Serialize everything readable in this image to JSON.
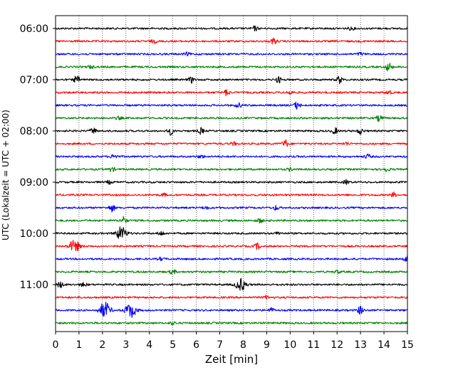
{
  "chart_data": {
    "type": "line",
    "xlabel": "Zeit  [min]",
    "ylabel": "UTC (Lokalzeit = UTC + 02:00)",
    "xlim": [
      0,
      15
    ],
    "x_ticks": [
      "0",
      "1",
      "2",
      "3",
      "4",
      "5",
      "6",
      "7",
      "8",
      "9",
      "10",
      "11",
      "12",
      "13",
      "14",
      "15"
    ],
    "y_tick_labels": [
      "06:00",
      "07:00",
      "08:00",
      "09:00",
      "10:00",
      "11:00"
    ],
    "grid": "vertical-dotted",
    "series_colors": [
      "#000000",
      "#ff0000",
      "#0000ff",
      "#008000"
    ],
    "traces": [
      {
        "start": "06:00",
        "color": "#000000",
        "events": [
          {
            "t": 8.5,
            "a": 3
          },
          {
            "t": 12.6,
            "a": 2
          }
        ]
      },
      {
        "start": "06:15",
        "color": "#ff0000",
        "events": [
          {
            "t": 9.3,
            "a": 4
          },
          {
            "t": 4.2,
            "a": 2
          }
        ]
      },
      {
        "start": "06:30",
        "color": "#0000ff",
        "events": [
          {
            "t": 5.6,
            "a": 2
          },
          {
            "t": 13.0,
            "a": 2
          }
        ]
      },
      {
        "start": "06:45",
        "color": "#008000",
        "events": [
          {
            "t": 14.2,
            "a": 6
          },
          {
            "t": 1.5,
            "a": 2
          }
        ]
      },
      {
        "start": "07:00",
        "color": "#000000",
        "events": [
          {
            "t": 0.9,
            "a": 5
          },
          {
            "t": 5.8,
            "a": 4
          },
          {
            "t": 9.5,
            "a": 4
          },
          {
            "t": 12.1,
            "a": 5
          }
        ]
      },
      {
        "start": "07:15",
        "color": "#ff0000",
        "events": [
          {
            "t": 7.3,
            "a": 4
          },
          {
            "t": 10.0,
            "a": 3
          },
          {
            "t": 14.2,
            "a": 3
          }
        ]
      },
      {
        "start": "07:30",
        "color": "#0000ff",
        "events": [
          {
            "t": 10.3,
            "a": 5
          },
          {
            "t": 7.8,
            "a": 3
          }
        ]
      },
      {
        "start": "07:45",
        "color": "#008000",
        "events": [
          {
            "t": 13.8,
            "a": 4
          },
          {
            "t": 2.7,
            "a": 2
          }
        ]
      },
      {
        "start": "08:00",
        "color": "#000000",
        "events": [
          {
            "t": 1.6,
            "a": 4
          },
          {
            "t": 4.9,
            "a": 5
          },
          {
            "t": 6.2,
            "a": 4
          },
          {
            "t": 11.9,
            "a": 4
          },
          {
            "t": 13.0,
            "a": 4
          }
        ]
      },
      {
        "start": "08:15",
        "color": "#ff0000",
        "events": [
          {
            "t": 9.8,
            "a": 5
          },
          {
            "t": 7.6,
            "a": 2
          },
          {
            "t": 12.4,
            "a": 2
          }
        ]
      },
      {
        "start": "08:30",
        "color": "#0000ff",
        "events": [
          {
            "t": 2.5,
            "a": 4
          },
          {
            "t": 13.3,
            "a": 3
          },
          {
            "t": 6.2,
            "a": 2
          }
        ]
      },
      {
        "start": "08:45",
        "color": "#008000",
        "events": [
          {
            "t": 2.4,
            "a": 3
          },
          {
            "t": 14.1,
            "a": 3
          },
          {
            "t": 10.0,
            "a": 2
          }
        ]
      },
      {
        "start": "09:00",
        "color": "#000000",
        "events": [
          {
            "t": 12.4,
            "a": 3
          },
          {
            "t": 2.3,
            "a": 2
          }
        ]
      },
      {
        "start": "09:15",
        "color": "#ff0000",
        "events": [
          {
            "t": 14.4,
            "a": 3
          },
          {
            "t": 4.6,
            "a": 2
          }
        ]
      },
      {
        "start": "09:30",
        "color": "#0000ff",
        "events": [
          {
            "t": 2.4,
            "a": 5
          },
          {
            "t": 9.4,
            "a": 3
          },
          {
            "t": 6.4,
            "a": 2
          }
        ]
      },
      {
        "start": "09:45",
        "color": "#008000",
        "events": [
          {
            "t": 2.9,
            "a": 5
          },
          {
            "t": 8.7,
            "a": 3
          }
        ]
      },
      {
        "start": "10:00",
        "color": "#000000",
        "events": [
          {
            "t": 2.8,
            "a": 9
          },
          {
            "t": 4.5,
            "a": 3
          },
          {
            "t": 9.5,
            "a": 2
          }
        ]
      },
      {
        "start": "10:15",
        "color": "#ff0000",
        "events": [
          {
            "t": 0.8,
            "a": 8
          },
          {
            "t": 8.6,
            "a": 4
          }
        ]
      },
      {
        "start": "10:30",
        "color": "#0000ff",
        "events": [
          {
            "t": 15.0,
            "a": 5
          },
          {
            "t": 4.5,
            "a": 2
          }
        ]
      },
      {
        "start": "10:45",
        "color": "#008000",
        "events": [
          {
            "t": 5.0,
            "a": 3
          },
          {
            "t": 12.0,
            "a": 2
          }
        ]
      },
      {
        "start": "11:00",
        "color": "#000000",
        "events": [
          {
            "t": 7.9,
            "a": 8
          },
          {
            "t": 0.2,
            "a": 4
          },
          {
            "t": 1.2,
            "a": 3
          }
        ]
      },
      {
        "start": "11:15",
        "color": "#ff0000",
        "events": [
          {
            "t": 9.0,
            "a": 2
          }
        ]
      },
      {
        "start": "11:30",
        "color": "#0000ff",
        "events": [
          {
            "t": 2.1,
            "a": 11
          },
          {
            "t": 3.2,
            "a": 10
          },
          {
            "t": 13.0,
            "a": 6
          },
          {
            "t": 9.2,
            "a": 3
          }
        ]
      },
      {
        "start": "11:45",
        "color": "#008000",
        "events": [
          {
            "t": 5.0,
            "a": 2
          }
        ]
      }
    ]
  }
}
